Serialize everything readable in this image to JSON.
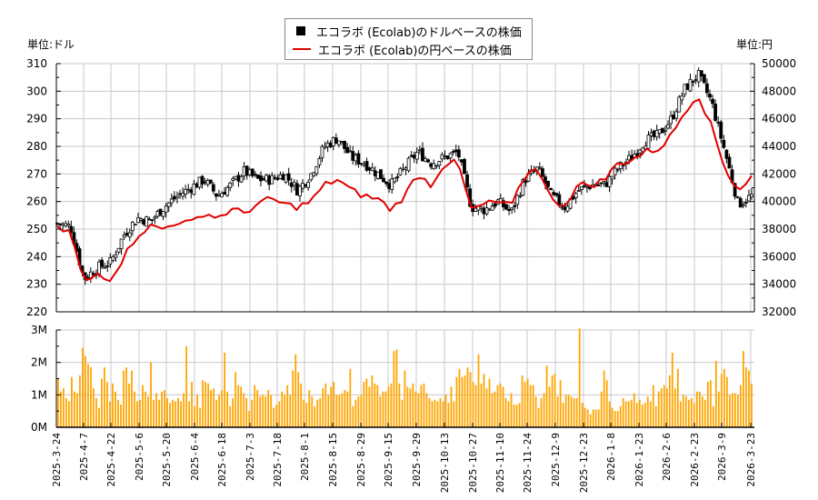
{
  "legend": {
    "usd_label": "エコラボ (Ecolab)のドルベースの株価",
    "jpy_label": "エコラボ (Ecolab)の円ベースの株価"
  },
  "units": {
    "left": "単位:ドル",
    "right": "単位:円"
  },
  "colors": {
    "candle": "#000000",
    "yen_line": "#e00000",
    "volume": "#ffa500",
    "grid": "#c8c8c8"
  },
  "chart_data": [
    {
      "type": "candlestick+line",
      "title": "エコラボ (Ecolab) 株価",
      "series": [
        {
          "name": "エコラボ (Ecolab)のドルベースの株価",
          "axis": "left"
        },
        {
          "name": "エコラボ (Ecolab)の円ベースの株価",
          "axis": "right"
        }
      ],
      "ylabel_left": "単位:ドル",
      "ylabel_right": "単位:円",
      "ylim_left": [
        220,
        310
      ],
      "yticks_left": [
        220,
        230,
        240,
        250,
        260,
        270,
        280,
        290,
        300,
        310
      ],
      "ylim_right": [
        32000,
        50000
      ],
      "yticks_right": [
        32000,
        34000,
        36000,
        38000,
        40000,
        42000,
        44000,
        46000,
        48000,
        50000
      ],
      "grid": true,
      "usd_close_weekly_approx": [
        [
          "2025-3-24",
          252
        ],
        [
          "2025-3-31",
          251
        ],
        [
          "2025-4-7",
          232
        ],
        [
          "2025-4-14",
          236
        ],
        [
          "2025-4-21",
          238
        ],
        [
          "2025-4-28",
          248
        ],
        [
          "2025-5-5",
          254
        ],
        [
          "2025-5-12",
          253
        ],
        [
          "2025-5-19",
          258
        ],
        [
          "2025-5-26",
          262
        ],
        [
          "2025-6-2",
          265
        ],
        [
          "2025-6-9",
          268
        ],
        [
          "2025-6-16",
          262
        ],
        [
          "2025-6-23",
          266
        ],
        [
          "2025-6-30",
          271
        ],
        [
          "2025-7-7",
          268
        ],
        [
          "2025-7-14",
          268
        ],
        [
          "2025-7-21",
          270
        ],
        [
          "2025-7-28",
          264
        ],
        [
          "2025-8-4",
          270
        ],
        [
          "2025-8-11",
          280
        ],
        [
          "2025-8-18",
          283
        ],
        [
          "2025-8-25",
          276
        ],
        [
          "2025-9-1",
          274
        ],
        [
          "2025-9-8",
          270
        ],
        [
          "2025-9-15",
          266
        ],
        [
          "2025-9-22",
          272
        ],
        [
          "2025-9-29",
          278
        ],
        [
          "2025-10-6",
          274
        ],
        [
          "2025-10-13",
          276
        ],
        [
          "2025-10-20",
          278
        ],
        [
          "2025-10-27",
          258
        ],
        [
          "2025-11-3",
          257
        ],
        [
          "2025-11-10",
          260
        ],
        [
          "2025-11-17",
          256
        ],
        [
          "2025-11-24",
          268
        ],
        [
          "2025-12-1",
          272
        ],
        [
          "2025-12-8",
          262
        ],
        [
          "2025-12-15",
          258
        ],
        [
          "2025-12-22",
          264
        ],
        [
          "2025-12-29",
          266
        ],
        [
          "2026-1-5",
          266
        ],
        [
          "2026-1-12",
          272
        ],
        [
          "2026-1-19",
          276
        ],
        [
          "2026-1-26",
          282
        ],
        [
          "2026-2-2",
          284
        ],
        [
          "2026-2-9",
          290
        ],
        [
          "2026-2-16",
          301
        ],
        [
          "2026-2-23",
          306
        ],
        [
          "2026-3-2",
          296
        ],
        [
          "2026-3-9",
          278
        ],
        [
          "2026-3-16",
          259
        ],
        [
          "2026-3-23",
          262
        ]
      ],
      "jpy_close_weekly_approx": [
        [
          "2025-3-24",
          38000
        ],
        [
          "2025-3-31",
          37800
        ],
        [
          "2025-4-7",
          34000
        ],
        [
          "2025-4-14",
          34800
        ],
        [
          "2025-4-21",
          34400
        ],
        [
          "2025-4-28",
          36000
        ],
        [
          "2025-5-5",
          37600
        ],
        [
          "2025-5-12",
          38200
        ],
        [
          "2025-5-19",
          38000
        ],
        [
          "2025-5-26",
          38600
        ],
        [
          "2025-6-2",
          38400
        ],
        [
          "2025-6-9",
          39200
        ],
        [
          "2025-6-16",
          38800
        ],
        [
          "2025-6-23",
          39400
        ],
        [
          "2025-6-30",
          39200
        ],
        [
          "2025-7-7",
          39800
        ],
        [
          "2025-7-14",
          40200
        ],
        [
          "2025-7-21",
          39800
        ],
        [
          "2025-7-28",
          39600
        ],
        [
          "2025-8-4",
          40000
        ],
        [
          "2025-8-11",
          41200
        ],
        [
          "2025-8-18",
          41600
        ],
        [
          "2025-8-25",
          40800
        ],
        [
          "2025-9-1",
          40400
        ],
        [
          "2025-9-8",
          40200
        ],
        [
          "2025-9-15",
          39400
        ],
        [
          "2025-9-22",
          40400
        ],
        [
          "2025-9-29",
          42000
        ],
        [
          "2025-10-6",
          41200
        ],
        [
          "2025-10-13",
          42800
        ],
        [
          "2025-10-20",
          42800
        ],
        [
          "2025-10-27",
          39400
        ],
        [
          "2025-11-3",
          39800
        ],
        [
          "2025-11-10",
          40000
        ],
        [
          "2025-11-17",
          39600
        ],
        [
          "2025-11-24",
          41800
        ],
        [
          "2025-12-1",
          42600
        ],
        [
          "2025-12-8",
          40000
        ],
        [
          "2025-12-15",
          39800
        ],
        [
          "2025-12-22",
          41200
        ],
        [
          "2025-12-29",
          41200
        ],
        [
          "2026-1-5",
          41600
        ],
        [
          "2026-1-12",
          42800
        ],
        [
          "2026-1-19",
          43000
        ],
        [
          "2026-1-26",
          43600
        ],
        [
          "2026-2-2",
          43800
        ],
        [
          "2026-2-9",
          44800
        ],
        [
          "2026-2-16",
          46600
        ],
        [
          "2026-2-23",
          47800
        ],
        [
          "2026-3-2",
          45400
        ],
        [
          "2026-3-9",
          42400
        ],
        [
          "2026-3-16",
          40800
        ],
        [
          "2026-3-23",
          41800
        ]
      ]
    },
    {
      "type": "bar",
      "title": "出来高",
      "ylim": [
        0,
        3000000
      ],
      "yticks": [
        "0M",
        "1M",
        "2M",
        "3M"
      ],
      "grid": true,
      "categories": [
        "2025-3-24",
        "2025-4-7",
        "2025-4-22",
        "2025-5-6",
        "2025-5-20",
        "2025-6-4",
        "2025-6-18",
        "2025-7-3",
        "2025-7-18",
        "2025-8-1",
        "2025-8-15",
        "2025-8-29",
        "2025-9-15",
        "2025-9-29",
        "2025-10-13",
        "2025-10-27",
        "2025-11-10",
        "2025-11-24",
        "2025-12-9",
        "2025-12-23",
        "2026-1-8",
        "2026-1-23",
        "2026-2-6",
        "2026-2-23",
        "2026-3-9",
        "2026-3-23"
      ],
      "volume_daily_approx_M": [
        1.5,
        1.1,
        1.2,
        0.9,
        0.8,
        1.55,
        1.1,
        1.05,
        1.6,
        2.45,
        2.2,
        1.95,
        1.85,
        1.2,
        0.9,
        0.6,
        1.5,
        1.85,
        1.4,
        0.8,
        1.35,
        1.1,
        0.85,
        0.7,
        1.75,
        1.85,
        1.35,
        1.75,
        1.1,
        0.8,
        0.85,
        1.3,
        1.1,
        0.95,
        2.0,
        0.85,
        1.05,
        0.85,
        1.1,
        1.15,
        0.9,
        0.75,
        0.85,
        0.8,
        0.9,
        0.8,
        1.05,
        2.5,
        0.8,
        1.4,
        0.65,
        1.0,
        0.6,
        1.45,
        1.4,
        1.35,
        1.15,
        1.2,
        0.85,
        1.0,
        1.15,
        2.3,
        1.1,
        0.65,
        0.9,
        1.7,
        1.3,
        1.25,
        1.05,
        0.9,
        0.5,
        0.85,
        1.3,
        1.15,
        0.95,
        1.0,
        0.95,
        1.15,
        1.0,
        0.6,
        0.7,
        0.8,
        1.1,
        1.0,
        1.3,
        1.0,
        1.75,
        2.25,
        1.7,
        1.35,
        0.85,
        0.75,
        1.15,
        0.95,
        0.65,
        0.85,
        0.9,
        1.2,
        1.35,
        1.0,
        1.25,
        1.4,
        1.0,
        1.0,
        1.05,
        1.15,
        1.1,
        1.8,
        0.65,
        0.85,
        0.95,
        1.0,
        1.4,
        1.5,
        1.25,
        1.6,
        1.35,
        1.3,
        0.95,
        1.1,
        1.1,
        1.25,
        1.35,
        2.35,
        2.4,
        1.35,
        0.85,
        1.75,
        1.25,
        1.2,
        1.35,
        1.1,
        1.05,
        1.3,
        1.35,
        1.05,
        0.9,
        0.8,
        0.85,
        0.8,
        0.9,
        0.8,
        1.0,
        0.75,
        1.25,
        0.8,
        1.55,
        1.8,
        1.55,
        1.6,
        1.85,
        1.7,
        1.4,
        1.3,
        2.25,
        1.35,
        1.65,
        1.2,
        1.5,
        1.05,
        1.1,
        1.3,
        1.35,
        1.25,
        0.9,
        0.8,
        1.05,
        0.7,
        0.7,
        0.75,
        1.6,
        1.4,
        1.5,
        1.3,
        1.3,
        0.95,
        0.6,
        0.9,
        1.05,
        1.9,
        1.25,
        1.6,
        1.65,
        0.95,
        1.45,
        0.75,
        1.0,
        1.0,
        0.95,
        0.9,
        0.9,
        3.1,
        0.75,
        0.6,
        0.55,
        0.4,
        0.55,
        0.55,
        0.55,
        1.1,
        1.75,
        1.45,
        0.8,
        0.6,
        0.5,
        0.5,
        0.65,
        0.9,
        0.8,
        0.8,
        0.85,
        1.05,
        0.75,
        0.85,
        0.7,
        0.75,
        0.95,
        0.8,
        1.3,
        0.65,
        1.1,
        1.2,
        1.3,
        1.2,
        1.6,
        2.3,
        1.2,
        1.8,
        0.8,
        1.0,
        0.95,
        0.85,
        0.9,
        0.75,
        1.1,
        1.1,
        0.95,
        0.85,
        1.4,
        1.45,
        0.65,
        2.05,
        1.1,
        1.65,
        1.8,
        1.55,
        1.0,
        1.05,
        1.05,
        1.0,
        1.3,
        2.35,
        1.85,
        1.75,
        1.35
      ]
    }
  ],
  "axes": {
    "left_ticks": [
      "310",
      "300",
      "290",
      "280",
      "270",
      "260",
      "250",
      "240",
      "230",
      "220"
    ],
    "right_ticks": [
      "50000",
      "48000",
      "46000",
      "44000",
      "42000",
      "40000",
      "38000",
      "36000",
      "34000",
      "32000"
    ],
    "volume_ticks": [
      "3M",
      "2M",
      "1M",
      "0M"
    ],
    "x_ticks": [
      "2025-3-24",
      "2025-4-7",
      "2025-4-22",
      "2025-5-6",
      "2025-5-20",
      "2025-6-4",
      "2025-6-18",
      "2025-7-3",
      "2025-7-18",
      "2025-8-1",
      "2025-8-15",
      "2025-8-29",
      "2025-9-15",
      "2025-9-29",
      "2025-10-13",
      "2025-10-27",
      "2025-11-10",
      "2025-11-24",
      "2025-12-9",
      "2025-12-23",
      "2026-1-8",
      "2026-1-23",
      "2026-2-6",
      "2026-2-23",
      "2026-3-9",
      "2026-3-23"
    ]
  }
}
